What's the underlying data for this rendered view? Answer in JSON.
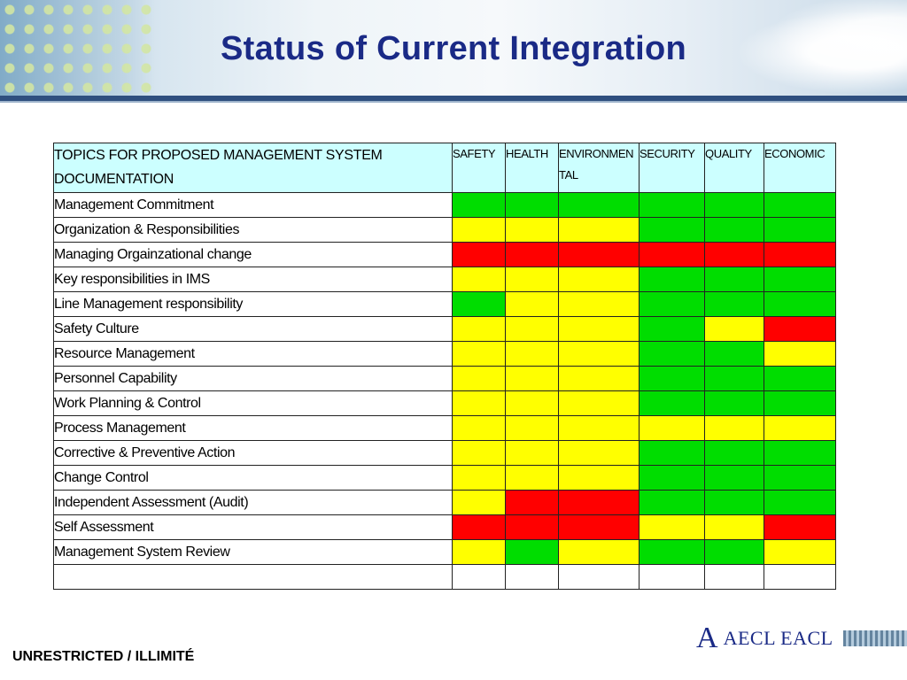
{
  "slide": {
    "title": "Status of Current Integration",
    "footer_text": "UNRESTRICTED / ILLIMITÉ",
    "logo": {
      "mark": "A",
      "text": "AECL EACL"
    }
  },
  "table": {
    "topic_header": "TOPICS FOR PROPOSED MANAGEMENT SYSTEM DOCUMENTATION",
    "columns": [
      "SAFETY",
      "HEALTH",
      "ENVIRONMENTAL",
      "SECURITY",
      "QUALITY",
      "ECONOMIC"
    ],
    "rows": [
      {
        "label": "Management Commitment",
        "status": [
          "green",
          "green",
          "green",
          "green",
          "green",
          "green"
        ]
      },
      {
        "label": "Organization & Responsibilities",
        "status": [
          "yellow",
          "yellow",
          "yellow",
          "green",
          "green",
          "green"
        ]
      },
      {
        "label": "Managing Orgainzational change",
        "status": [
          "red",
          "red",
          "red",
          "red",
          "red",
          "red"
        ]
      },
      {
        "label": "Key responsibilities in IMS",
        "status": [
          "yellow",
          "yellow",
          "yellow",
          "green",
          "green",
          "green"
        ]
      },
      {
        "label": "Line Management responsibility",
        "status": [
          "green",
          "yellow",
          "yellow",
          "green",
          "green",
          "green"
        ]
      },
      {
        "label": "Safety Culture",
        "status": [
          "yellow",
          "yellow",
          "yellow",
          "green",
          "yellow",
          "red"
        ]
      },
      {
        "label": "Resource Management",
        "status": [
          "yellow",
          "yellow",
          "yellow",
          "green",
          "green",
          "yellow"
        ]
      },
      {
        "label": "Personnel Capability",
        "status": [
          "yellow",
          "yellow",
          "yellow",
          "green",
          "green",
          "green"
        ]
      },
      {
        "label": "Work Planning & Control",
        "status": [
          "yellow",
          "yellow",
          "yellow",
          "green",
          "green",
          "green"
        ]
      },
      {
        "label": "Process Management",
        "status": [
          "yellow",
          "yellow",
          "yellow",
          "yellow",
          "yellow",
          "yellow"
        ]
      },
      {
        "label": "Corrective & Preventive Action",
        "status": [
          "yellow",
          "yellow",
          "yellow",
          "green",
          "green",
          "green"
        ]
      },
      {
        "label": "Change Control",
        "status": [
          "yellow",
          "yellow",
          "yellow",
          "green",
          "green",
          "green"
        ]
      },
      {
        "label": "Independent Assessment (Audit)",
        "status": [
          "yellow",
          "red",
          "red",
          "green",
          "green",
          "green"
        ]
      },
      {
        "label": "Self Assessment",
        "status": [
          "red",
          "red",
          "red",
          "yellow",
          "yellow",
          "red"
        ]
      },
      {
        "label": "Management System Review",
        "status": [
          "yellow",
          "green",
          "yellow",
          "green",
          "green",
          "yellow"
        ]
      },
      {
        "label": "",
        "status": [
          "white",
          "white",
          "white",
          "white",
          "white",
          "white"
        ]
      }
    ]
  },
  "colors": {
    "green": "#00dd00",
    "yellow": "#ffff00",
    "red": "#ff0000",
    "white": "#ffffff",
    "header_fill": "#ccffff",
    "title": "#1a2a86"
  }
}
